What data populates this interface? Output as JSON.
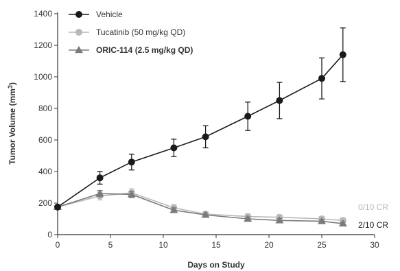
{
  "chart_data": {
    "type": "line",
    "xlabel": "Days on Study",
    "ylabel": "Tumor Volume (mm³)",
    "ylabel_main": "Tumor Volume (mm",
    "ylabel_sup": "3",
    "ylabel_close": ")",
    "xlim": [
      0,
      30
    ],
    "ylim": [
      0,
      1400
    ],
    "x_ticks": [
      0,
      5,
      10,
      15,
      20,
      25,
      30
    ],
    "y_ticks": [
      0,
      200,
      400,
      600,
      800,
      1000,
      1200,
      1400
    ],
    "grid": false,
    "legend_position": "top-left",
    "series": [
      {
        "name": "Vehicle",
        "color": "#1a1a1a",
        "marker": "circle",
        "bold": false,
        "x": [
          0,
          4,
          7,
          11,
          14,
          18,
          21,
          25,
          27
        ],
        "y": [
          175,
          360,
          460,
          550,
          620,
          750,
          850,
          990,
          1140
        ],
        "err": [
          10,
          40,
          50,
          55,
          70,
          90,
          115,
          130,
          170
        ]
      },
      {
        "name": "Tucatinib (50 mg/kg QD)",
        "color": "#b8b8b8",
        "marker": "circle",
        "bold": false,
        "x": [
          0,
          4,
          7,
          11,
          14,
          18,
          21,
          25,
          27
        ],
        "y": [
          175,
          245,
          265,
          170,
          130,
          115,
          110,
          100,
          90
        ],
        "err": [
          10,
          25,
          25,
          20,
          15,
          15,
          15,
          15,
          15
        ]
      },
      {
        "name": "ORIC-114 (2.5 mg/kg QD)",
        "color": "#7a7a7a",
        "marker": "triangle",
        "bold": true,
        "x": [
          0,
          4,
          7,
          11,
          14,
          18,
          21,
          25,
          27
        ],
        "y": [
          175,
          260,
          255,
          155,
          125,
          100,
          90,
          85,
          70
        ],
        "err": [
          10,
          20,
          20,
          15,
          12,
          12,
          12,
          12,
          10
        ]
      }
    ],
    "annotations": [
      {
        "text": "0/10 CR",
        "color": "#b8b8b8"
      },
      {
        "text": "2/10 CR",
        "color": "#1a1a1a"
      }
    ]
  }
}
